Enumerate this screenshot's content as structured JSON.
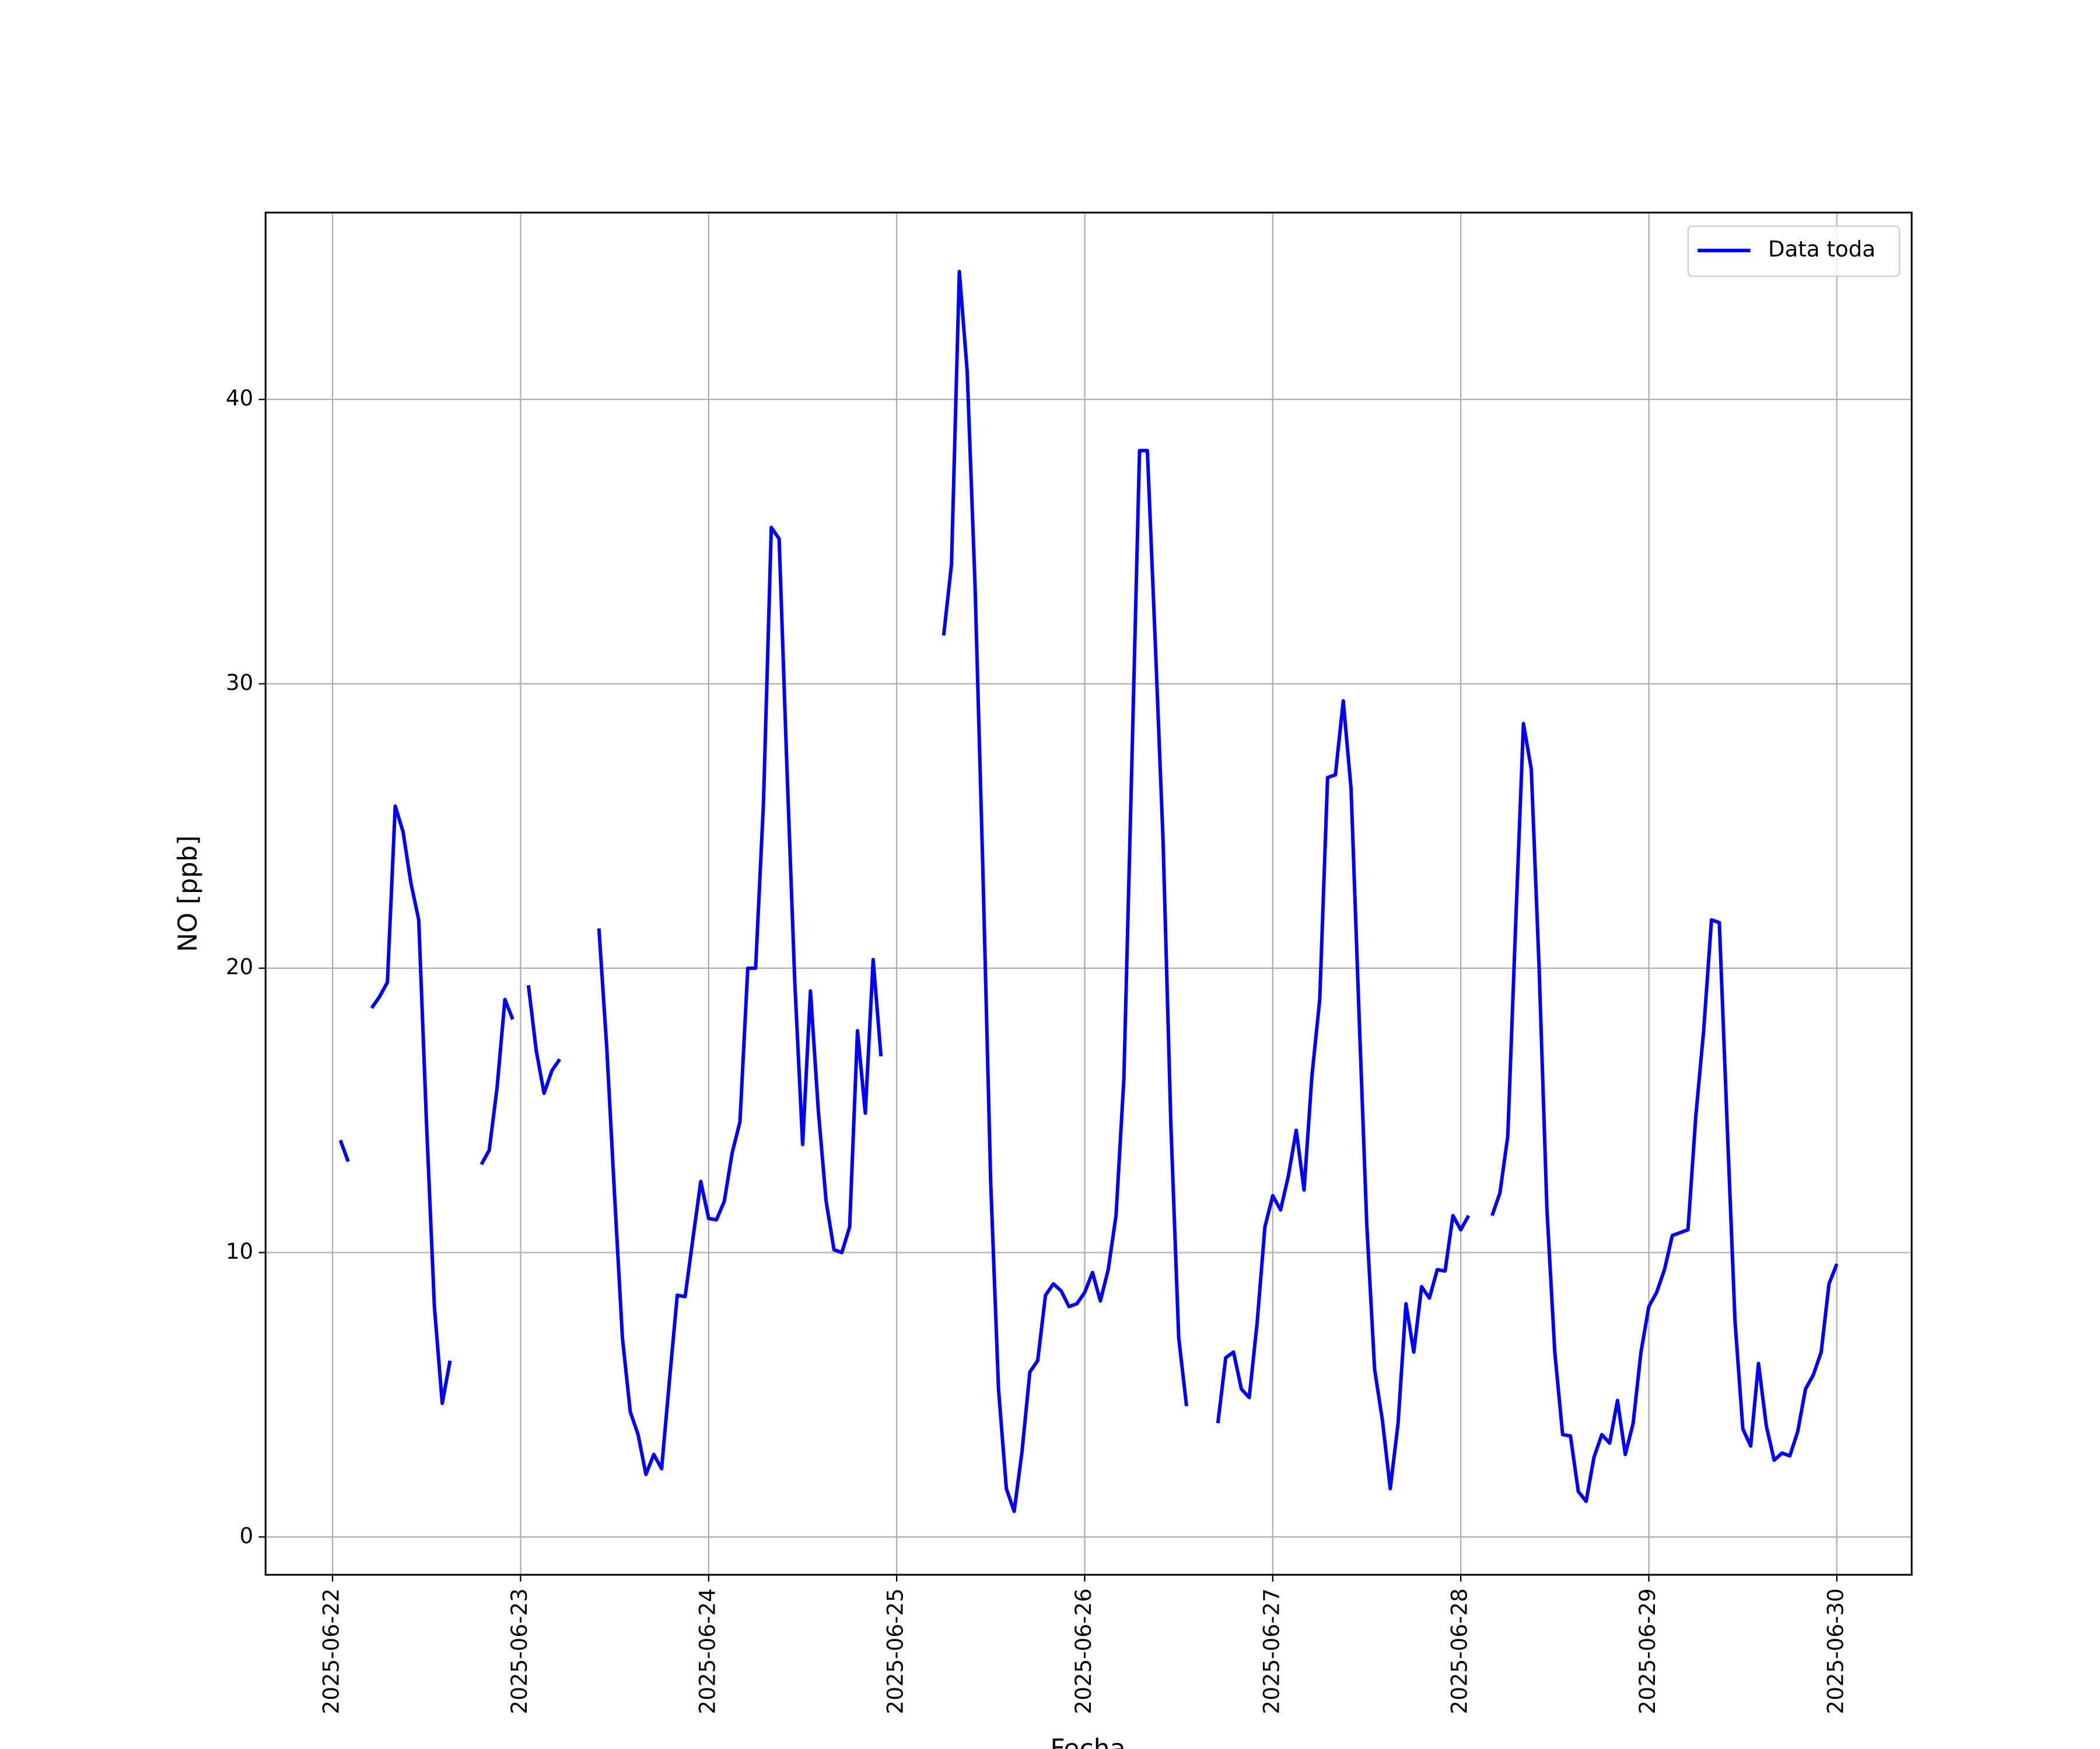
{
  "chart_data": {
    "type": "line",
    "xlabel": "Fecha",
    "ylabel": "NO [ppb]",
    "x": [
      "2025-06-22 01:00",
      "2025-06-22 02:00",
      "2025-06-22 03:00",
      "2025-06-22 04:00",
      "2025-06-22 05:00",
      "2025-06-22 06:00",
      "2025-06-22 07:00",
      "2025-06-22 08:00",
      "2025-06-22 09:00",
      "2025-06-22 10:00",
      "2025-06-22 11:00",
      "2025-06-22 12:00",
      "2025-06-22 13:00",
      "2025-06-22 14:00",
      "2025-06-22 15:00",
      "2025-06-22 16:00",
      "2025-06-22 17:00",
      "2025-06-22 18:00",
      "2025-06-22 19:00",
      "2025-06-22 20:00",
      "2025-06-22 21:00",
      "2025-06-22 22:00",
      "2025-06-22 23:00",
      "2025-06-23 00:00",
      "2025-06-23 01:00",
      "2025-06-23 02:00",
      "2025-06-23 03:00",
      "2025-06-23 04:00",
      "2025-06-23 05:00",
      "2025-06-23 06:00",
      "2025-06-23 07:00",
      "2025-06-23 08:00",
      "2025-06-23 09:00",
      "2025-06-23 10:00",
      "2025-06-23 11:00",
      "2025-06-23 12:00",
      "2025-06-23 13:00",
      "2025-06-23 14:00",
      "2025-06-23 15:00",
      "2025-06-23 16:00",
      "2025-06-23 17:00",
      "2025-06-23 18:00",
      "2025-06-23 19:00",
      "2025-06-23 20:00",
      "2025-06-23 21:00",
      "2025-06-23 22:00",
      "2025-06-23 23:00",
      "2025-06-24 00:00",
      "2025-06-24 01:00",
      "2025-06-24 02:00",
      "2025-06-24 03:00",
      "2025-06-24 04:00",
      "2025-06-24 05:00",
      "2025-06-24 06:00",
      "2025-06-24 07:00",
      "2025-06-24 08:00",
      "2025-06-24 09:00",
      "2025-06-24 10:00",
      "2025-06-24 11:00",
      "2025-06-24 12:00",
      "2025-06-24 13:00",
      "2025-06-24 14:00",
      "2025-06-24 15:00",
      "2025-06-24 16:00",
      "2025-06-24 17:00",
      "2025-06-24 18:00",
      "2025-06-24 19:00",
      "2025-06-24 20:00",
      "2025-06-24 21:00",
      "2025-06-24 22:00",
      "2025-06-24 23:00",
      "2025-06-25 00:00",
      "2025-06-25 01:00",
      "2025-06-25 02:00",
      "2025-06-25 03:00",
      "2025-06-25 04:00",
      "2025-06-25 05:00",
      "2025-06-25 06:00",
      "2025-06-25 07:00",
      "2025-06-25 08:00",
      "2025-06-25 09:00",
      "2025-06-25 10:00",
      "2025-06-25 11:00",
      "2025-06-25 12:00",
      "2025-06-25 13:00",
      "2025-06-25 14:00",
      "2025-06-25 15:00",
      "2025-06-25 16:00",
      "2025-06-25 17:00",
      "2025-06-25 18:00",
      "2025-06-25 19:00",
      "2025-06-25 20:00",
      "2025-06-25 21:00",
      "2025-06-25 22:00",
      "2025-06-25 23:00",
      "2025-06-26 00:00",
      "2025-06-26 01:00",
      "2025-06-26 02:00",
      "2025-06-26 03:00",
      "2025-06-26 04:00",
      "2025-06-26 05:00",
      "2025-06-26 06:00",
      "2025-06-26 07:00",
      "2025-06-26 08:00",
      "2025-06-26 09:00",
      "2025-06-26 10:00",
      "2025-06-26 11:00",
      "2025-06-26 12:00",
      "2025-06-26 13:00",
      "2025-06-26 14:00",
      "2025-06-26 15:00",
      "2025-06-26 16:00",
      "2025-06-26 17:00",
      "2025-06-26 18:00",
      "2025-06-26 19:00",
      "2025-06-26 20:00",
      "2025-06-26 21:00",
      "2025-06-26 22:00",
      "2025-06-26 23:00",
      "2025-06-27 00:00",
      "2025-06-27 01:00",
      "2025-06-27 02:00",
      "2025-06-27 03:00",
      "2025-06-27 04:00",
      "2025-06-27 05:00",
      "2025-06-27 06:00",
      "2025-06-27 07:00",
      "2025-06-27 08:00",
      "2025-06-27 09:00",
      "2025-06-27 10:00",
      "2025-06-27 11:00",
      "2025-06-27 12:00",
      "2025-06-27 13:00",
      "2025-06-27 14:00",
      "2025-06-27 15:00",
      "2025-06-27 16:00",
      "2025-06-27 17:00",
      "2025-06-27 18:00",
      "2025-06-27 19:00",
      "2025-06-27 20:00",
      "2025-06-27 21:00",
      "2025-06-27 22:00",
      "2025-06-27 23:00",
      "2025-06-28 00:00",
      "2025-06-28 01:00",
      "2025-06-28 02:00",
      "2025-06-28 03:00",
      "2025-06-28 04:00",
      "2025-06-28 05:00",
      "2025-06-28 06:00",
      "2025-06-28 07:00",
      "2025-06-28 08:00",
      "2025-06-28 09:00",
      "2025-06-28 10:00",
      "2025-06-28 11:00",
      "2025-06-28 12:00",
      "2025-06-28 13:00",
      "2025-06-28 14:00",
      "2025-06-28 15:00",
      "2025-06-28 16:00",
      "2025-06-28 17:00",
      "2025-06-28 18:00",
      "2025-06-28 19:00",
      "2025-06-28 20:00",
      "2025-06-28 21:00",
      "2025-06-28 22:00",
      "2025-06-28 23:00",
      "2025-06-29 00:00",
      "2025-06-29 01:00",
      "2025-06-29 02:00",
      "2025-06-29 03:00",
      "2025-06-29 04:00",
      "2025-06-29 05:00",
      "2025-06-29 06:00",
      "2025-06-29 07:00",
      "2025-06-29 08:00",
      "2025-06-29 09:00",
      "2025-06-29 10:00",
      "2025-06-29 11:00",
      "2025-06-29 12:00",
      "2025-06-29 13:00",
      "2025-06-29 14:00",
      "2025-06-29 15:00",
      "2025-06-29 16:00",
      "2025-06-29 17:00",
      "2025-06-29 18:00",
      "2025-06-29 19:00",
      "2025-06-29 20:00",
      "2025-06-29 21:00",
      "2025-06-29 22:00",
      "2025-06-29 23:00",
      "2025-06-30 00:00"
    ],
    "series": [
      {
        "name": "Data toda",
        "color": "#0000ff",
        "values": [
          13.95,
          13.2,
          null,
          null,
          18.6,
          19.0,
          19.5,
          25.7,
          24.8,
          23.0,
          21.7,
          14.5,
          8.1,
          4.7,
          6.2,
          null,
          null,
          null,
          13.1,
          13.6,
          15.8,
          18.9,
          18.2,
          null,
          19.4,
          17.1,
          15.6,
          16.4,
          16.8,
          null,
          null,
          null,
          null,
          21.4,
          17.2,
          12.0,
          7.0,
          4.4,
          3.6,
          2.2,
          2.9,
          2.4,
          5.5,
          8.5,
          8.45,
          10.5,
          12.5,
          11.2,
          11.15,
          11.8,
          13.5,
          14.6,
          20.0,
          20.0,
          25.8,
          35.5,
          35.1,
          27,
          19.5,
          13.8,
          19.2,
          15.0,
          11.8,
          10.1,
          10.0,
          10.9,
          17.8,
          14.9,
          20.3,
          16.9,
          null,
          null,
          null,
          null,
          null,
          null,
          null,
          31.7,
          34.2,
          44.5,
          41.0,
          33.5,
          23.5,
          12.5,
          5.2,
          1.7,
          0.9,
          3.0,
          5.8,
          6.2,
          8.5,
          8.9,
          8.65,
          8.1,
          8.2,
          8.6,
          9.3,
          8.3,
          9.4,
          11.3,
          16.1,
          27,
          38.2,
          38.2,
          31.5,
          24.5,
          14.5,
          7.0,
          4.6,
          null,
          null,
          null,
          4.0,
          6.3,
          6.5,
          5.2,
          4.9,
          7.5,
          10.9,
          12.0,
          11.5,
          12.7,
          14.3,
          12.2,
          16.2,
          18.9,
          26.7,
          26.8,
          29.4,
          26.3,
          18.5,
          11.0,
          5.9,
          4.1,
          1.7,
          4.0,
          8.2,
          6.5,
          8.8,
          8.4,
          9.4,
          9.35,
          11.3,
          10.8,
          11.3,
          null,
          null,
          11.3,
          12.1,
          14.1,
          21.5,
          28.6,
          27.0,
          20.0,
          11.5,
          6.5,
          3.6,
          3.55,
          1.6,
          1.25,
          2.8,
          3.6,
          3.3,
          4.8,
          2.9,
          4.0,
          6.5,
          8.1,
          8.6,
          9.4,
          10.6,
          10.7,
          10.8,
          14.8,
          17.8,
          21.7,
          21.6,
          14.5,
          7.6,
          3.8,
          3.2,
          6.1,
          3.9,
          2.7,
          2.95,
          2.85,
          3.7,
          5.2,
          5.7,
          6.5,
          8.9,
          9.6
        ]
      }
    ],
    "xlim": [
      "2025-06-21 15:27",
      "2025-06-30 09:33"
    ],
    "xticks": [
      "2025-06-22",
      "2025-06-23",
      "2025-06-24",
      "2025-06-25",
      "2025-06-26",
      "2025-06-27",
      "2025-06-28",
      "2025-06-29",
      "2025-06-30"
    ],
    "ylim": [
      -1.33,
      46.57
    ],
    "yticks": [
      0,
      10,
      20,
      30,
      40
    ],
    "grid": true,
    "legend": "upper right"
  }
}
